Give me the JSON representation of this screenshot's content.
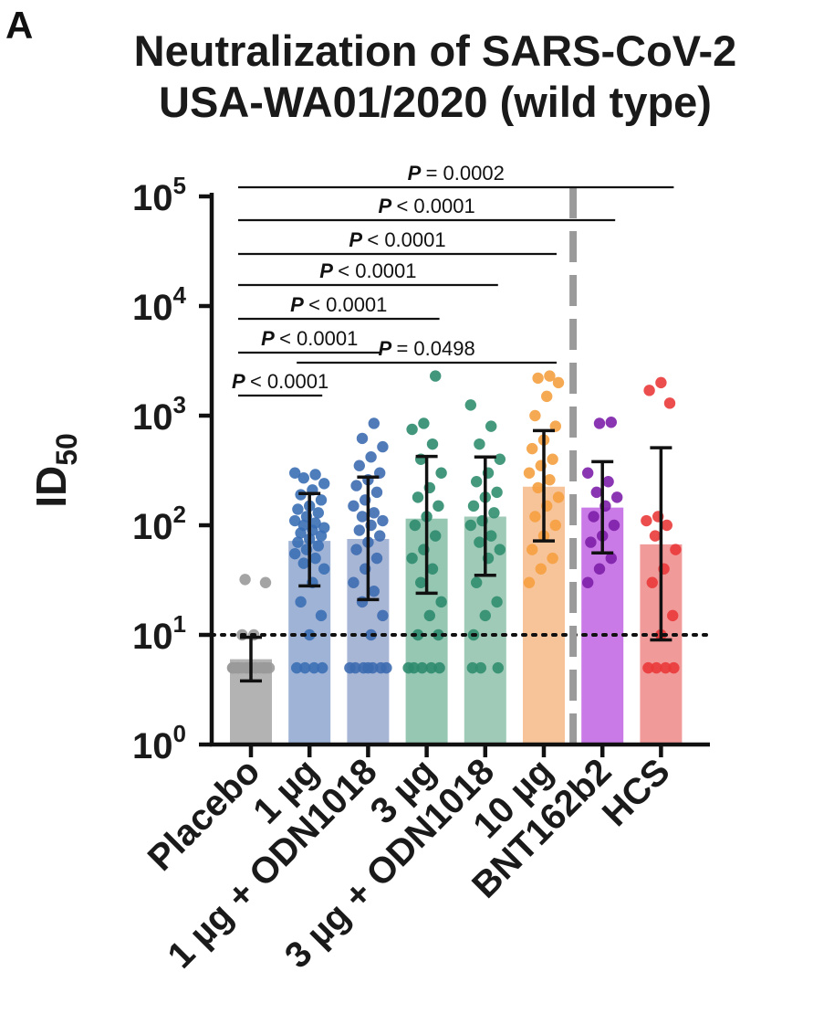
{
  "panel_label": "A",
  "chart_data": {
    "type": "bar",
    "title": "Neutralization of SARS-CoV-2",
    "subtitle": "USA-WA01/2020 (wild type)",
    "ylabel_main": "ID",
    "ylabel_sub": "50",
    "ylabel": "ID50",
    "xlabel": "",
    "yscale": "log",
    "ylim": [
      1,
      100000
    ],
    "y_ticks": [
      {
        "base": "10",
        "exp": "0",
        "value": 1
      },
      {
        "base": "10",
        "exp": "1",
        "value": 10
      },
      {
        "base": "10",
        "exp": "2",
        "value": 100
      },
      {
        "base": "10",
        "exp": "3",
        "value": 1000
      },
      {
        "base": "10",
        "exp": "4",
        "value": 10000
      },
      {
        "base": "10",
        "exp": "5",
        "value": 100000
      }
    ],
    "categories": [
      "Placebo",
      "1 µg",
      "1 µg + ODN1018",
      "3 µg",
      "3 µg + ODN1018",
      "10 µg",
      "BNT162b2",
      "HCS"
    ],
    "values": [
      6,
      72,
      75,
      115,
      120,
      225,
      145,
      67
    ],
    "error_low": [
      3.8,
      28,
      21,
      24,
      35,
      72,
      56,
      9
    ],
    "error_high": [
      9.5,
      195,
      275,
      425,
      420,
      730,
      380,
      510
    ],
    "colors": [
      "#b3b3b3",
      "#9fb3d6",
      "#a8b6d6",
      "#96c7b3",
      "#9ecab7",
      "#f7c49a",
      "#c97ae6",
      "#f19a9a"
    ],
    "dot_colors": [
      "#9a9a9a",
      "#3b6fb5",
      "#3d6cb0",
      "#2e8b6e",
      "#318e6f",
      "#f5a040",
      "#7d1fa8",
      "#ea3a3a"
    ],
    "points": [
      [
        5,
        5,
        5,
        5,
        5,
        5,
        5,
        5,
        5,
        5,
        5,
        5,
        5,
        5,
        5,
        5,
        5,
        10,
        10,
        30,
        32
      ],
      [
        5,
        5,
        5,
        5,
        10,
        15,
        20,
        30,
        40,
        45,
        50,
        55,
        60,
        65,
        70,
        75,
        80,
        85,
        90,
        95,
        100,
        105,
        110,
        120,
        130,
        140,
        150,
        170,
        190,
        210,
        240,
        270,
        290,
        300
      ],
      [
        5,
        5,
        5,
        5,
        5,
        5,
        5,
        10,
        15,
        20,
        25,
        30,
        40,
        50,
        60,
        70,
        80,
        90,
        100,
        110,
        120,
        130,
        150,
        170,
        200,
        230,
        260,
        300,
        350,
        420,
        520,
        620,
        850
      ],
      [
        5,
        5,
        5,
        5,
        5,
        10,
        10,
        15,
        20,
        30,
        40,
        50,
        60,
        80,
        100,
        120,
        150,
        180,
        220,
        300,
        400,
        550,
        750,
        850,
        2300
      ],
      [
        5,
        5,
        5,
        10,
        15,
        20,
        30,
        50,
        60,
        70,
        80,
        100,
        110,
        130,
        150,
        180,
        200,
        250,
        300,
        400,
        550,
        800,
        1250
      ],
      [
        30,
        40,
        50,
        60,
        80,
        100,
        120,
        150,
        180,
        220,
        260,
        300,
        350,
        400,
        500,
        600,
        800,
        1000,
        1500,
        2000,
        2200,
        2300
      ],
      [
        30,
        40,
        50,
        70,
        80,
        100,
        120,
        150,
        180,
        200,
        250,
        300,
        850,
        870
      ],
      [
        5,
        5,
        5,
        5,
        10,
        15,
        30,
        40,
        60,
        80,
        100,
        110,
        120,
        1300,
        1700,
        2000
      ]
    ],
    "lod": 10,
    "divider_after_category_index": 5,
    "comparisons": [
      {
        "p_label": "P",
        "p_text": "< 0.0001",
        "from": 0,
        "to": 1
      },
      {
        "p_label": "P",
        "p_text": "< 0.0001",
        "from": 0,
        "to": 2
      },
      {
        "p_label": "P",
        "p_text": "< 0.0001",
        "from": 0,
        "to": 3
      },
      {
        "p_label": "P",
        "p_text": "< 0.0001",
        "from": 0,
        "to": 4
      },
      {
        "p_label": "P",
        "p_text": "< 0.0001",
        "from": 0,
        "to": 5
      },
      {
        "p_label": "P",
        "p_text": "< 0.0001",
        "from": 0,
        "to": 6
      },
      {
        "p_label": "P",
        "p_text": "= 0.0002",
        "from": 0,
        "to": 7
      },
      {
        "p_label": "P",
        "p_text": "= 0.0498",
        "from": 1,
        "to": 5
      }
    ]
  }
}
